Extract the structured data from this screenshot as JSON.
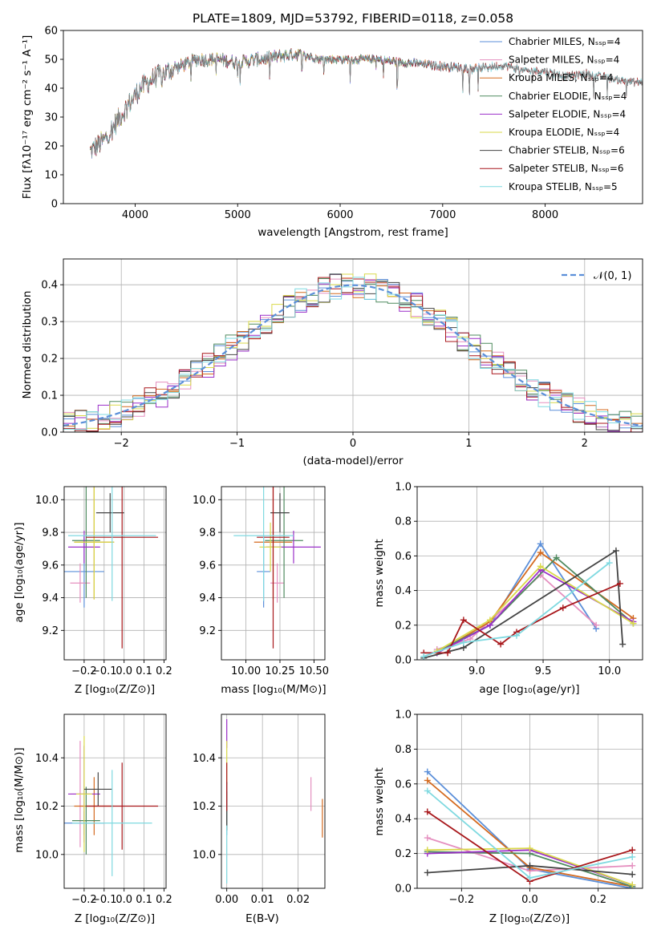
{
  "figure": {
    "spectrum_title": "PLATE=1809, MJD=53792, FIBERID=0118, z=0.058",
    "spectrum_xlabel": "wavelength [Angstrom, rest frame]",
    "spectrum_ylabel": "Flux [fλ10⁻¹⁷ erg cm⁻² s⁻¹ A⁻¹]",
    "hist_xlabel": "(data-model)/error",
    "hist_ylabel": "Normed distribution",
    "hist_legend": "𝒩(0, 1)",
    "age_ylabel": "age  [log₁₀(age/yr)]",
    "z_xlabel": "Z [log₁₀(Z/Z⊙)]",
    "mass_xlabel": "mass [log₁₀(M/M⊙)]",
    "mass_ylabel": "mass [log₁₀(M/M⊙)]",
    "massweight_ylabel": "mass weight",
    "age_xlabel": "age  [log₁₀(age/yr)]",
    "ebv_xlabel": "E(B-V)"
  },
  "chart_data": [
    {
      "id": "spectrum",
      "type": "line",
      "title": "PLATE=1809, MJD=53792, FIBERID=0118, z=0.058",
      "xlim": [
        3300,
        8950
      ],
      "ylim": [
        0,
        60
      ],
      "xticks": [
        4000,
        5000,
        6000,
        7000,
        8000
      ],
      "yticks": [
        0,
        10,
        20,
        30,
        40,
        50,
        60
      ],
      "legend_position": "top-right",
      "series": [
        {
          "name": "Chabrier MILES, N_SSP=4",
          "color": "#5b8fd9"
        },
        {
          "name": "Salpeter MILES, N_SSP=4",
          "color": "#e58fbf"
        },
        {
          "name": "Kroupa MILES, N_SSP=4",
          "color": "#d46a1f"
        },
        {
          "name": "Chabrier ELODIE, N_SSP=4",
          "color": "#4f8a5f"
        },
        {
          "name": "Salpeter ELODIE, N_SSP=4",
          "color": "#9b2fc9"
        },
        {
          "name": "Kroupa ELODIE, N_SSP=4",
          "color": "#d9d94a"
        },
        {
          "name": "Chabrier STELIB, N_SSP=6",
          "color": "#444444"
        },
        {
          "name": "Salpeter STELIB, N_SSP=6",
          "color": "#a8171b"
        },
        {
          "name": "Kroupa STELIB, N_SSP=5",
          "color": "#7fd9e0"
        }
      ],
      "continuum": {
        "x": [
          3560,
          3700,
          3850,
          3950,
          4050,
          4200,
          4400,
          4600,
          4800,
          5000,
          5200,
          5400,
          5600,
          5800,
          6000,
          6300,
          6600,
          6900,
          7200,
          7400,
          7600,
          7800,
          8000,
          8200,
          8400,
          8700,
          8900
        ],
        "y": [
          18,
          22,
          30,
          35,
          40,
          44,
          47,
          50,
          50,
          49,
          50,
          51,
          52,
          50,
          50,
          50,
          49,
          48,
          47,
          47,
          48,
          46,
          46,
          44,
          45,
          43,
          42
        ]
      }
    },
    {
      "id": "residuals",
      "type": "histogram",
      "xlim": [
        -2.5,
        2.5
      ],
      "ylim": [
        0,
        0.47
      ],
      "xticks": [
        -2,
        -1,
        0,
        1,
        2
      ],
      "yticks": [
        0.0,
        0.1,
        0.2,
        0.3,
        0.4
      ],
      "reference": "N(0,1)",
      "reference_color": "#5b8fd9",
      "legend_position": "top-right"
    },
    {
      "id": "age_vs_Z",
      "type": "scatter",
      "xlim": [
        -0.3,
        0.21
      ],
      "ylim": [
        9.02,
        10.08
      ],
      "xticks": [
        -0.2,
        -0.1,
        0.0,
        0.1,
        0.2
      ],
      "yticks": [
        9.2,
        9.4,
        9.6,
        9.8,
        10.0
      ],
      "points": [
        {
          "x": -0.2,
          "y": 9.56,
          "xerr": 0.1,
          "yerr": 0.22,
          "color": "#5b8fd9"
        },
        {
          "x": -0.22,
          "y": 9.49,
          "xerr": 0.05,
          "yerr": 0.12,
          "color": "#e58fbf"
        },
        {
          "x": -0.15,
          "y": 9.74,
          "xerr": 0.1,
          "yerr": 0.35,
          "color": "#d46a1f"
        },
        {
          "x": -0.19,
          "y": 9.75,
          "xerr": 0.07,
          "yerr": 0.35,
          "color": "#4f8a5f"
        },
        {
          "x": -0.2,
          "y": 9.71,
          "xerr": 0.08,
          "yerr": 0.1,
          "color": "#9b2fc9"
        },
        {
          "x": -0.15,
          "y": 9.74,
          "xerr": 0.1,
          "yerr": 0.35,
          "color": "#d9d94a"
        },
        {
          "x": -0.07,
          "y": 9.92,
          "xerr": 0.07,
          "yerr": 0.12,
          "color": "#444444"
        },
        {
          "x": -0.01,
          "y": 9.77,
          "xerr": 0.18,
          "yerr": 0.68,
          "color": "#a8171b"
        },
        {
          "x": -0.06,
          "y": 9.78,
          "xerr": 0.22,
          "yerr": 0.4,
          "color": "#7fd9e0"
        }
      ]
    },
    {
      "id": "age_vs_mass",
      "type": "scatter",
      "xlim": [
        9.82,
        10.58
      ],
      "ylim": [
        9.02,
        10.08
      ],
      "xticks": [
        10.0,
        10.25,
        10.5
      ],
      "yticks": [
        9.2,
        9.4,
        9.6,
        9.8,
        10.0
      ],
      "points": [
        {
          "x": 10.13,
          "y": 9.56,
          "xerr": 0.05,
          "yerr": 0.22,
          "color": "#5b8fd9"
        },
        {
          "x": 10.23,
          "y": 9.49,
          "xerr": 0.05,
          "yerr": 0.12,
          "color": "#e58fbf"
        },
        {
          "x": 10.2,
          "y": 9.74,
          "xerr": 0.14,
          "yerr": 0.35,
          "color": "#d46a1f"
        },
        {
          "x": 10.28,
          "y": 9.75,
          "xerr": 0.14,
          "yerr": 0.35,
          "color": "#4f8a5f"
        },
        {
          "x": 10.35,
          "y": 9.71,
          "xerr": 0.2,
          "yerr": 0.1,
          "color": "#9b2fc9"
        },
        {
          "x": 10.18,
          "y": 9.71,
          "xerr": 0.08,
          "yerr": 0.15,
          "color": "#d9d94a"
        },
        {
          "x": 10.25,
          "y": 9.92,
          "xerr": 0.07,
          "yerr": 0.12,
          "color": "#444444"
        },
        {
          "x": 10.2,
          "y": 9.77,
          "xerr": 0.12,
          "yerr": 0.68,
          "color": "#a8171b"
        },
        {
          "x": 10.13,
          "y": 9.78,
          "xerr": 0.22,
          "yerr": 0.4,
          "color": "#7fd9e0"
        }
      ]
    },
    {
      "id": "massweight_vs_age",
      "type": "line",
      "xlim": [
        8.55,
        10.25
      ],
      "ylim": [
        0,
        1.0
      ],
      "xticks": [
        9.0,
        9.5,
        10.0
      ],
      "yticks": [
        0.0,
        0.2,
        0.4,
        0.6,
        0.8,
        1.0
      ],
      "series": [
        {
          "color": "#5b8fd9",
          "x": [
            8.7,
            9.1,
            9.48,
            9.9
          ],
          "y": [
            0.04,
            0.2,
            0.67,
            0.18
          ]
        },
        {
          "color": "#e58fbf",
          "x": [
            8.7,
            8.95,
            9.48,
            9.9
          ],
          "y": [
            0.06,
            0.12,
            0.49,
            0.2
          ]
        },
        {
          "color": "#d46a1f",
          "x": [
            8.7,
            9.1,
            9.48,
            10.18
          ],
          "y": [
            0.04,
            0.22,
            0.62,
            0.24
          ]
        },
        {
          "color": "#4f8a5f",
          "x": [
            8.7,
            9.1,
            9.6,
            10.18
          ],
          "y": [
            0.05,
            0.2,
            0.59,
            0.21
          ]
        },
        {
          "color": "#9b2fc9",
          "x": [
            8.7,
            9.1,
            9.48,
            10.18
          ],
          "y": [
            0.04,
            0.2,
            0.52,
            0.22
          ]
        },
        {
          "color": "#d9d94a",
          "x": [
            8.7,
            9.1,
            9.48,
            10.18
          ],
          "y": [
            0.05,
            0.23,
            0.54,
            0.21
          ]
        },
        {
          "color": "#444444",
          "x": [
            8.6,
            8.9,
            10.05,
            10.1
          ],
          "y": [
            0.01,
            0.07,
            0.63,
            0.09
          ]
        },
        {
          "color": "#a8171b",
          "x": [
            8.6,
            8.78,
            8.9,
            9.18,
            9.3,
            9.65,
            10.08
          ],
          "y": [
            0.04,
            0.04,
            0.23,
            0.09,
            0.16,
            0.3,
            0.44
          ]
        },
        {
          "color": "#7fd9e0",
          "x": [
            8.6,
            8.9,
            9.3,
            10.0
          ],
          "y": [
            0.02,
            0.1,
            0.14,
            0.56
          ]
        }
      ]
    },
    {
      "id": "mass_vs_Z",
      "type": "scatter",
      "xlim": [
        -0.3,
        0.21
      ],
      "ylim": [
        9.86,
        10.58
      ],
      "xticks": [
        -0.2,
        -0.1,
        0.0,
        0.1,
        0.2
      ],
      "yticks": [
        10.0,
        10.2,
        10.4
      ],
      "points": [
        {
          "x": -0.2,
          "y": 10.13,
          "xerr": 0.1,
          "yerr": 0.05,
          "color": "#5b8fd9"
        },
        {
          "x": -0.22,
          "y": 10.25,
          "xerr": 0.05,
          "yerr": 0.22,
          "color": "#e58fbf"
        },
        {
          "x": -0.15,
          "y": 10.2,
          "xerr": 0.1,
          "yerr": 0.12,
          "color": "#d46a1f"
        },
        {
          "x": -0.19,
          "y": 10.14,
          "xerr": 0.07,
          "yerr": 0.14,
          "color": "#4f8a5f"
        },
        {
          "x": -0.2,
          "y": 10.25,
          "xerr": 0.08,
          "yerr": 0.2,
          "color": "#9b2fc9"
        },
        {
          "x": -0.2,
          "y": 10.25,
          "xerr": 0.04,
          "yerr": 0.24,
          "color": "#d9d94a"
        },
        {
          "x": -0.13,
          "y": 10.27,
          "xerr": 0.07,
          "yerr": 0.07,
          "color": "#444444"
        },
        {
          "x": -0.01,
          "y": 10.2,
          "xerr": 0.18,
          "yerr": 0.18,
          "color": "#a8171b"
        },
        {
          "x": -0.06,
          "y": 10.13,
          "xerr": 0.2,
          "yerr": 0.22,
          "color": "#7fd9e0"
        }
      ]
    },
    {
      "id": "mass_vs_ebv",
      "type": "scatter",
      "xlim": [
        -0.0015,
        0.0275
      ],
      "ylim": [
        9.86,
        10.58
      ],
      "xticks": [
        0.0,
        0.01,
        0.02
      ],
      "yticks": [
        10.0,
        10.2,
        10.4
      ],
      "points": [
        {
          "x": 0.0,
          "y": 10.13,
          "yerr": 0.05,
          "color": "#5b8fd9"
        },
        {
          "x": 0.0236,
          "y": 10.25,
          "yerr": 0.07,
          "color": "#e58fbf"
        },
        {
          "x": 0.0268,
          "y": 10.15,
          "yerr": 0.08,
          "color": "#d46a1f"
        },
        {
          "x": 0.0,
          "y": 10.18,
          "yerr": 0.08,
          "color": "#4f8a5f"
        },
        {
          "x": 0.0,
          "y": 10.5,
          "yerr": 0.06,
          "color": "#9b2fc9"
        },
        {
          "x": 0.0,
          "y": 10.38,
          "yerr": 0.09,
          "color": "#d9d94a"
        },
        {
          "x": 0.0,
          "y": 10.2,
          "yerr": 0.1,
          "color": "#444444"
        },
        {
          "x": 0.0,
          "y": 10.28,
          "yerr": 0.1,
          "color": "#a8171b"
        },
        {
          "x": 0.0,
          "y": 10.0,
          "yerr": 0.12,
          "color": "#7fd9e0"
        }
      ]
    },
    {
      "id": "massweight_vs_Z",
      "type": "line",
      "xlim": [
        -0.33,
        0.33
      ],
      "ylim": [
        0,
        1.0
      ],
      "xticks": [
        -0.2,
        0.0,
        0.2
      ],
      "yticks": [
        0.0,
        0.2,
        0.4,
        0.6,
        0.8,
        1.0
      ],
      "series": [
        {
          "color": "#5b8fd9",
          "x": [
            -0.3,
            0.0,
            0.3
          ],
          "y": [
            0.67,
            0.11,
            0.0
          ]
        },
        {
          "color": "#e58fbf",
          "x": [
            -0.3,
            0.0,
            0.3
          ],
          "y": [
            0.29,
            0.1,
            0.13
          ]
        },
        {
          "color": "#d46a1f",
          "x": [
            -0.3,
            0.0,
            0.3
          ],
          "y": [
            0.62,
            0.12,
            0.01
          ]
        },
        {
          "color": "#4f8a5f",
          "x": [
            -0.3,
            0.0,
            0.3
          ],
          "y": [
            0.21,
            0.2,
            0.01
          ]
        },
        {
          "color": "#9b2fc9",
          "x": [
            -0.3,
            0.0,
            0.3
          ],
          "y": [
            0.2,
            0.22,
            0.02
          ]
        },
        {
          "color": "#d9d94a",
          "x": [
            -0.3,
            0.0,
            0.3
          ],
          "y": [
            0.22,
            0.23,
            0.02
          ]
        },
        {
          "color": "#444444",
          "x": [
            -0.3,
            0.0,
            0.3
          ],
          "y": [
            0.09,
            0.13,
            0.08
          ]
        },
        {
          "color": "#a8171b",
          "x": [
            -0.3,
            0.0,
            0.3
          ],
          "y": [
            0.44,
            0.04,
            0.22
          ]
        },
        {
          "color": "#7fd9e0",
          "x": [
            -0.3,
            0.0,
            0.3
          ],
          "y": [
            0.56,
            0.06,
            0.18
          ]
        }
      ]
    }
  ]
}
